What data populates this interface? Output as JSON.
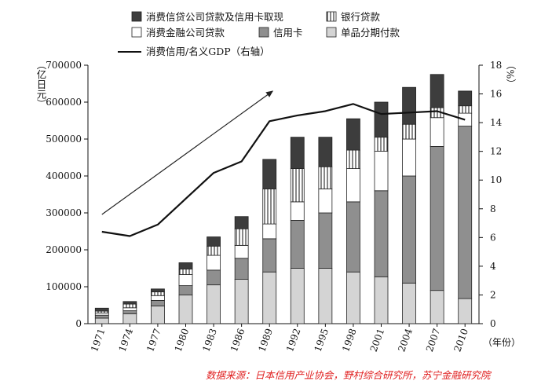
{
  "chart_data": {
    "type": "bar",
    "stacked": true,
    "categories": [
      "1971",
      "1974",
      "1977",
      "1980",
      "1983",
      "1986",
      "1989",
      "1992",
      "1995",
      "1998",
      "2001",
      "2004",
      "2007",
      "2010"
    ],
    "series": [
      {
        "name": "单品分期付款",
        "color": "#d4d4d4",
        "values": [
          15000,
          27000,
          48000,
          78000,
          105000,
          120000,
          140000,
          150000,
          150000,
          140000,
          127000,
          110000,
          90000,
          68000
        ]
      },
      {
        "name": "信用卡",
        "color": "#8f8f8f",
        "values": [
          8000,
          8000,
          15000,
          25000,
          40000,
          57000,
          90000,
          130000,
          150000,
          190000,
          233000,
          290000,
          390000,
          467000
        ]
      },
      {
        "name": "消费金融公司贷款",
        "color": "#ffffff",
        "values": [
          6000,
          8000,
          13000,
          30000,
          40000,
          35000,
          40000,
          50000,
          65000,
          90000,
          107000,
          100000,
          78000,
          35000
        ]
      },
      {
        "name": "银行贷款",
        "color": "hatch",
        "values": [
          5000,
          10000,
          10000,
          15000,
          25000,
          45000,
          95000,
          90000,
          60000,
          50000,
          38000,
          40000,
          27000,
          20000
        ]
      },
      {
        "name": "消费信贷公司贷款及信用卡取现",
        "color": "#3d3d3d",
        "values": [
          8000,
          7000,
          8000,
          17000,
          25000,
          33000,
          80000,
          85000,
          80000,
          85000,
          95000,
          100000,
          90000,
          40000
        ]
      }
    ],
    "line": {
      "name": "消费信用/名义GDP（右轴）",
      "axis": "right",
      "values": [
        6.4,
        6.1,
        6.9,
        8.7,
        10.5,
        11.3,
        14.1,
        14.5,
        14.8,
        15.3,
        14.6,
        14.7,
        14.8,
        14.2
      ]
    },
    "ylim": [
      0,
      700000
    ],
    "yticks": [
      0,
      100000,
      200000,
      300000,
      400000,
      500000,
      600000,
      700000
    ],
    "ylim_right": [
      0,
      18
    ],
    "yticks_right": [
      0,
      2,
      4,
      6,
      8,
      10,
      12,
      14,
      16,
      18
    ],
    "ylabel": "亿日元",
    "ylabel_right": "%",
    "xlabel": "年份",
    "legend_position": "top",
    "grid": false,
    "trend_arrow": true
  },
  "ylabel_display": "（亿日元）",
  "ylabel_right_display": "（%）",
  "xlabel_display": "（年份）",
  "source": "数据来源：日本信用产业协会，野村综合研究所，苏宁金融研究院"
}
